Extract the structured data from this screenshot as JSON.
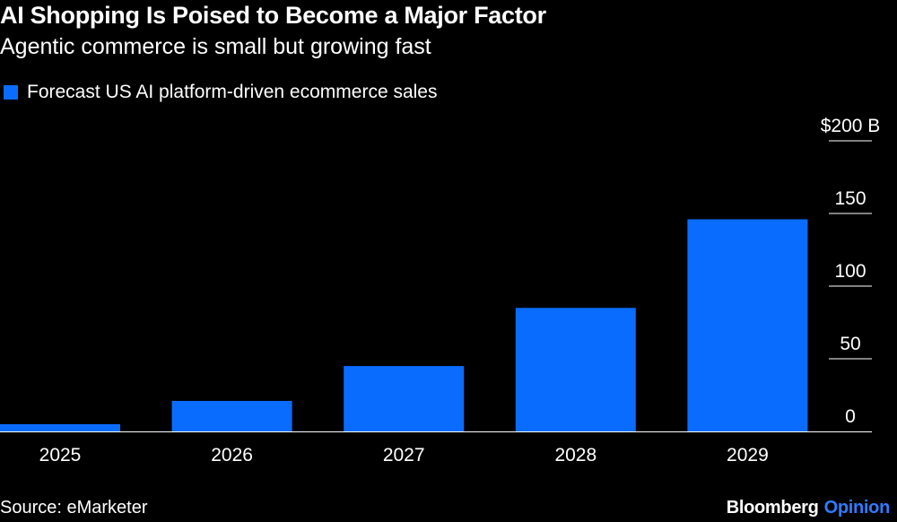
{
  "title": "AI Shopping Is Poised to Become a Major Factor",
  "subtitle": "Agentic commerce is small but growing fast",
  "source": "Source: eMarketer",
  "brand": {
    "name": "Bloomberg",
    "section": "Opinion"
  },
  "colors": {
    "background": "#000000",
    "bar": "#0a6cff",
    "text": "#ffffff",
    "grid": "#ffffff",
    "brand_accent": "#2f7bff"
  },
  "chart_data": {
    "type": "bar",
    "categories": [
      "2025",
      "2026",
      "2027",
      "2028",
      "2029"
    ],
    "series": [
      {
        "name": "Forecast US AI platform-driven ecommerce sales",
        "values": [
          5,
          21,
          45,
          85,
          146
        ]
      }
    ],
    "ylim": [
      0,
      200
    ],
    "yticks": [
      0,
      50,
      100,
      150,
      200
    ],
    "ytick_labels": [
      "0",
      "50",
      "100",
      "150",
      "$200 B"
    ],
    "y_axis_position": "right",
    "grid": false,
    "legend_position": "top-left"
  }
}
